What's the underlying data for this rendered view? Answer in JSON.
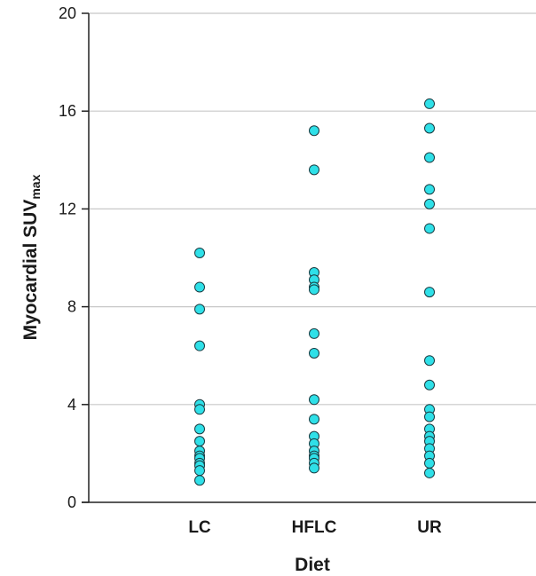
{
  "chart_data": {
    "type": "scatter",
    "xlabel": "Diet",
    "ylabel": {
      "main": "Myocardial SUV",
      "subscript": "max"
    },
    "categories": [
      "LC",
      "HFLC",
      "UR"
    ],
    "ylim": [
      0,
      20
    ],
    "yticks": [
      0,
      4,
      8,
      12,
      16,
      20
    ],
    "grid": true,
    "legend": "none",
    "marker_color": "#2fe0e8",
    "marker_edge_color": "#1a3a40",
    "series": [
      {
        "category": "LC",
        "values": [
          10.2,
          8.8,
          7.9,
          6.4,
          4.0,
          3.8,
          3.0,
          2.5,
          2.1,
          1.9,
          1.8,
          1.6,
          1.5,
          1.3,
          0.9
        ]
      },
      {
        "category": "HFLC",
        "values": [
          15.2,
          13.6,
          9.4,
          9.1,
          8.8,
          8.7,
          6.9,
          6.1,
          4.2,
          3.4,
          2.7,
          2.4,
          2.1,
          1.9,
          1.8,
          1.6,
          1.4
        ]
      },
      {
        "category": "UR",
        "values": [
          16.3,
          15.3,
          14.1,
          12.8,
          12.2,
          11.2,
          8.6,
          5.8,
          4.8,
          3.8,
          3.5,
          3.0,
          2.7,
          2.5,
          2.2,
          1.9,
          1.6,
          1.2
        ]
      }
    ]
  }
}
